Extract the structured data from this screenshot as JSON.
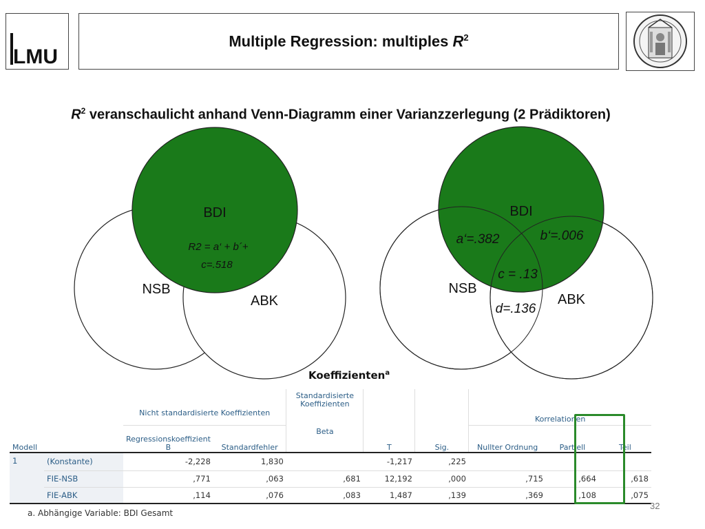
{
  "header": {
    "logo_text": "LMU",
    "title_main": "Multiple Regression: multiples ",
    "title_var": "R",
    "title_sup": "2"
  },
  "subtitle": {
    "var": "R",
    "sup": "2",
    "text": " veranschaulicht anhand Venn-Diagramm einer Varianzzerlegung (2 Prädiktoren)"
  },
  "venn_left": {
    "bdi": "BDI",
    "nsb": "NSB",
    "abk": "ABK",
    "formula_line1": "R2 = a‘ + b´+",
    "formula_line2": "c=.518"
  },
  "venn_right": {
    "bdi": "BDI",
    "nsb": "NSB",
    "abk": "ABK",
    "a": "a‘=.382",
    "b": "b‘=.006",
    "c": "c = .13",
    "d": "d=.136"
  },
  "colors": {
    "venn_green": "#1a7a1a",
    "highlight_frame": "#2a8a2a",
    "table_header": "#2b5d86"
  },
  "table": {
    "title": "Koeffizienten",
    "title_sup": "a",
    "group_unstd": "Nicht standardisierte Koeffizienten",
    "group_std": "Standardisierte Koeffizienten",
    "group_corr": "Korrelationen",
    "col_modell": "Modell",
    "col_b": "Regressionskoeffizient B",
    "col_se": "Standardfehler",
    "col_beta": "Beta",
    "col_t": "T",
    "col_sig": "Sig.",
    "col_zero": "Nullter Ordnung",
    "col_partial": "Partiell",
    "col_teil": "Teil",
    "model": "1",
    "rows": [
      {
        "label": "(Konstante)",
        "b": "-2,228",
        "se": "1,830",
        "beta": "",
        "t": "-1,217",
        "sig": ",225",
        "zero": "",
        "partial": "",
        "teil": ""
      },
      {
        "label": "FIE-NSB",
        "b": ",771",
        "se": ",063",
        "beta": ",681",
        "t": "12,192",
        "sig": ",000",
        "zero": ",715",
        "partial": ",664",
        "teil": ",618"
      },
      {
        "label": "FIE-ABK",
        "b": ",114",
        "se": ",076",
        "beta": ",083",
        "t": "1,487",
        "sig": ",139",
        "zero": ",369",
        "partial": ",108",
        "teil": ",075"
      }
    ],
    "footnote": "a. Abhängige Variable: BDI Gesamt"
  },
  "page_number": "32"
}
